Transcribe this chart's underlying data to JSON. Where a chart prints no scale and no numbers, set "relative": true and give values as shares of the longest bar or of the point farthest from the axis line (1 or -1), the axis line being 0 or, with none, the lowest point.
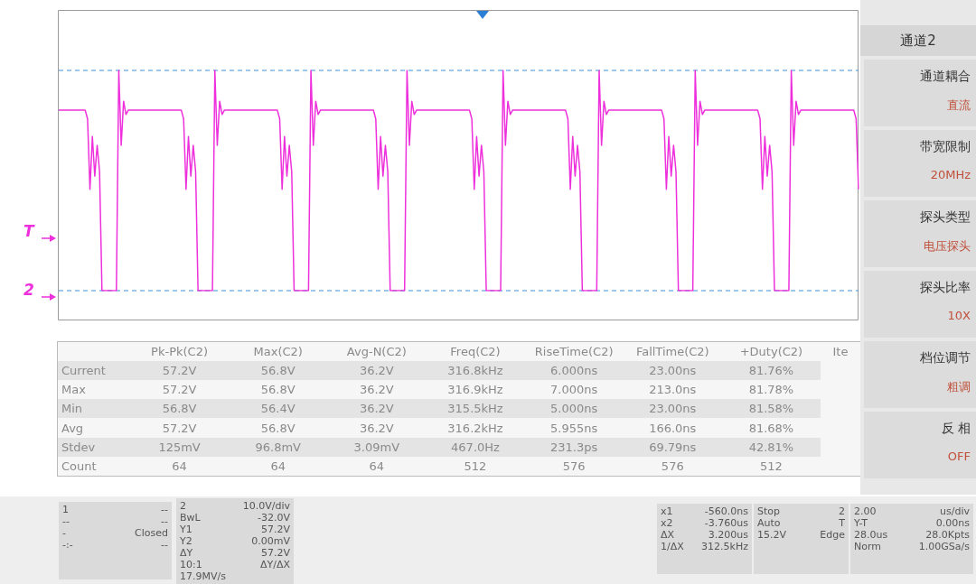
{
  "chart_data": [
    {
      "type": "line",
      "relative": true,
      "marker": "none",
      "categories": [
        null,
        null,
        null,
        null,
        null,
        null,
        null,
        null,
        null,
        null,
        null,
        null,
        null,
        null,
        null,
        null,
        null,
        null,
        null,
        null,
        null,
        null,
        null,
        null,
        null,
        null,
        null,
        null,
        null,
        null,
        null,
        null,
        null,
        null,
        null,
        null,
        null,
        null,
        null,
        null,
        null,
        null,
        null,
        null,
        null,
        null,
        null,
        null,
        null,
        null,
        null,
        null,
        null,
        null,
        null,
        null,
        null,
        null,
        null,
        null,
        null,
        null,
        null,
        null,
        null,
        null,
        null,
        null,
        null,
        null,
        null,
        null,
        null,
        null,
        null,
        null,
        null,
        null,
        null,
        null,
        null,
        null,
        null,
        null,
        null,
        null,
        null,
        null,
        null,
        null,
        null,
        null,
        null,
        null,
        null,
        null,
        null,
        null,
        null,
        null,
        null,
        null,
        null,
        null,
        null,
        null,
        null,
        null,
        null,
        null,
        null,
        null,
        null,
        null,
        null,
        null,
        null,
        null,
        null,
        null,
        null,
        null,
        null,
        null,
        null,
        null,
        null,
        null,
        null,
        null,
        null,
        null,
        null,
        null,
        null,
        null,
        null,
        null,
        null,
        null,
        null,
        null,
        null,
        null,
        null,
        null,
        null,
        null,
        null,
        null,
        null,
        null,
        null,
        null,
        null,
        null,
        null,
        null,
        null,
        null,
        null,
        null,
        null,
        null,
        null,
        null,
        null,
        null,
        null,
        null,
        null,
        null,
        null,
        null,
        null,
        null,
        null,
        null,
        null,
        null,
        null,
        null,
        null,
        null,
        null,
        null,
        null,
        null,
        null,
        null,
        null,
        null,
        null,
        null,
        null,
        null,
        null,
        null,
        null,
        null,
        null,
        null,
        null,
        null,
        null,
        null,
        null,
        null,
        null,
        null,
        null,
        null,
        null,
        null,
        null,
        null,
        null,
        null,
        null,
        null,
        null,
        null,
        null,
        null,
        null,
        null,
        null,
        null,
        null,
        null,
        null,
        null,
        null,
        null,
        null,
        null,
        null,
        null,
        null,
        null,
        null,
        null,
        null,
        null,
        null,
        null,
        null,
        null,
        null,
        null,
        null,
        null,
        null,
        null,
        null,
        null,
        null,
        null,
        null,
        null,
        null,
        null,
        null,
        null,
        null,
        null,
        null,
        null,
        null,
        null,
        null,
        null,
        null,
        null,
        null,
        null,
        null,
        null,
        null,
        null,
        null,
        null,
        null,
        null,
        null,
        null,
        null,
        null,
        null,
        null,
        null,
        null,
        null,
        null,
        null,
        null,
        null,
        null,
        null,
        null,
        null,
        null,
        null,
        null,
        null,
        null,
        null,
        null,
        null,
        null,
        null,
        null,
        null,
        null,
        null,
        null,
        null,
        null,
        null,
        null,
        null,
        null,
        null,
        null,
        null,
        null,
        null,
        null,
        null,
        null,
        null,
        null,
        null,
        null
      ],
      "series": [
        {
          "color": "#ee30dc",
          "values": [
            0.82,
            0.82,
            0.82,
            0.82,
            0.82,
            0.82,
            0.82,
            0.82,
            0.82,
            0.82,
            0.82,
            0.82,
            0.78,
            0.46,
            0.7,
            0.52,
            0.66,
            0.54,
            0,
            0,
            0,
            0,
            0,
            0,
            0,
            1,
            0.66,
            0.86,
            0.8,
            0.82,
            0.82,
            0.82,
            0.82,
            0.82,
            0.82,
            0.82,
            0.82,
            0.82,
            0.82,
            0.82,
            0.82,
            0.82,
            0.82,
            0.82,
            0.82,
            0.82,
            0.82,
            0.82,
            0.82,
            0.82,
            0.82,
            0.82,
            0.78,
            0.46,
            0.7,
            0.52,
            0.66,
            0.54,
            0,
            0,
            0,
            0,
            0,
            0,
            0,
            1,
            0.66,
            0.86,
            0.8,
            0.82,
            0.82,
            0.82,
            0.82,
            0.82,
            0.82,
            0.82,
            0.82,
            0.82,
            0.82,
            0.82,
            0.82,
            0.82,
            0.82,
            0.82,
            0.82,
            0.82,
            0.82,
            0.82,
            0.82,
            0.82,
            0.82,
            0.82,
            0.78,
            0.46,
            0.7,
            0.52,
            0.66,
            0.54,
            0,
            0,
            0,
            0,
            0,
            0,
            0,
            1,
            0.66,
            0.86,
            0.8,
            0.82,
            0.82,
            0.82,
            0.82,
            0.82,
            0.82,
            0.82,
            0.82,
            0.82,
            0.82,
            0.82,
            0.82,
            0.82,
            0.82,
            0.82,
            0.82,
            0.82,
            0.82,
            0.82,
            0.82,
            0.82,
            0.82,
            0.82,
            0.78,
            0.46,
            0.7,
            0.52,
            0.66,
            0.54,
            0,
            0,
            0,
            0,
            0,
            0,
            0,
            1,
            0.66,
            0.86,
            0.8,
            0.82,
            0.82,
            0.82,
            0.82,
            0.82,
            0.82,
            0.82,
            0.82,
            0.82,
            0.82,
            0.82,
            0.82,
            0.82,
            0.82,
            0.82,
            0.82,
            0.82,
            0.82,
            0.82,
            0.82,
            0.82,
            0.82,
            0.82,
            0.78,
            0.46,
            0.7,
            0.52,
            0.66,
            0.54,
            0,
            0,
            0,
            0,
            0,
            0,
            0,
            1,
            0.66,
            0.86,
            0.8,
            0.82,
            0.82,
            0.82,
            0.82,
            0.82,
            0.82,
            0.82,
            0.82,
            0.82,
            0.82,
            0.82,
            0.82,
            0.82,
            0.82,
            0.82,
            0.82,
            0.82,
            0.82,
            0.82,
            0.82,
            0.82,
            0.82,
            0.82,
            0.78,
            0.46,
            0.7,
            0.52,
            0.66,
            0.54,
            0,
            0,
            0,
            0,
            0,
            0,
            0,
            1,
            0.66,
            0.86,
            0.8,
            0.82,
            0.82,
            0.82,
            0.82,
            0.82,
            0.82,
            0.82,
            0.82,
            0.82,
            0.82,
            0.82,
            0.82,
            0.82,
            0.82,
            0.82,
            0.82,
            0.82,
            0.82,
            0.82,
            0.82,
            0.82,
            0.82,
            0.82,
            0.78,
            0.46,
            0.7,
            0.52,
            0.66,
            0.54,
            0,
            0,
            0,
            0,
            0,
            0,
            0,
            1,
            0.66,
            0.86,
            0.8,
            0.82,
            0.82,
            0.82,
            0.82,
            0.82,
            0.82,
            0.82,
            0.82,
            0.82,
            0.82,
            0.82,
            0.82,
            0.82,
            0.82,
            0.82,
            0.82,
            0.82,
            0.82,
            0.82,
            0.82,
            0.82,
            0.82,
            0.82,
            0.78,
            0.46,
            0.7,
            0.52,
            0.66,
            0.54,
            0,
            0,
            0,
            0,
            0,
            0,
            0,
            1,
            0.66,
            0.86,
            0.8,
            0.82,
            0.82,
            0.82,
            0.82,
            0.82,
            0.82,
            0.82,
            0.82,
            0.82,
            0.82,
            0.82,
            0.82,
            0.82,
            0.82,
            0.82,
            0.82,
            0.82,
            0.82,
            0.82,
            0.82,
            0.82,
            0.82,
            0.82,
            0.78,
            0.46
          ]
        }
      ],
      "ref_lines": [
        {
          "axis": "y",
          "value": 1,
          "color": "#3a8fd6",
          "line_style": "dashed"
        },
        {
          "axis": "y",
          "value": 0,
          "color": "#3a8fd6",
          "line_style": "dashed"
        }
      ],
      "annotations": [
        "T",
        "2"
      ]
    },
    {
      "type": "other",
      "annotations": [
        "Pk-Pk(C2)",
        "Max(C2)",
        "Avg-N(C2)",
        "Freq(C2)",
        "RiseTime(C2)",
        "FallTime(C2)",
        "+Duty(C2)",
        "Ite",
        "Current",
        "57.2V",
        "56.8V",
        "36.2V",
        "316.8kHz",
        "6.000ns",
        "23.00ns",
        "81.76%",
        "Max",
        "57.2V",
        "56.8V",
        "36.2V",
        "316.9kHz",
        "7.000ns",
        "213.0ns",
        "81.78%",
        "Min",
        "56.8V",
        "56.4V",
        "36.2V",
        "315.5kHz",
        "5.000ns",
        "23.00ns",
        "81.58%",
        "Avg",
        "57.2V",
        "56.8V",
        "36.2V",
        "316.2kHz",
        "5.955ns",
        "166.0ns",
        "81.68%",
        "Stdev",
        "125mV",
        "96.8mV",
        "3.09mV",
        "467.0Hz",
        "231.3ps",
        "69.79ns",
        "42.81%",
        "Count",
        "64",
        "64",
        "64",
        "512",
        "576",
        "576",
        "512"
      ]
    },
    {
      "type": "other",
      "title": "通道2",
      "annotations": [
        "通道耦合",
        "直流",
        "带宽限制",
        "20MHz",
        "探头类型",
        "电压探头",
        "探头比率",
        "10X",
        "档位调节",
        "粗调",
        "反 相",
        "OFF"
      ]
    },
    {
      "type": "other",
      "annotations": [
        "1",
        "--",
        "--",
        "--",
        "-",
        "Closed",
        "-:-",
        "--"
      ]
    },
    {
      "type": "other",
      "annotations": [
        "2",
        "10.0V/div",
        "BwL",
        "-32.0V",
        "Y1",
        "57.2V",
        "Y2",
        "0.00mV",
        "ΔY",
        "57.2V",
        "10:1",
        "ΔY/ΔX",
        "17.9MV/s"
      ]
    },
    {
      "type": "other",
      "annotations": [
        "x1",
        "-560.0ns",
        "x2",
        "-3.760us",
        "ΔX",
        "3.200us",
        "1/ΔX",
        "312.5kHz"
      ]
    },
    {
      "type": "other",
      "annotations": [
        "Stop",
        "2",
        "Auto",
        "T",
        "15.2V",
        "Edge"
      ]
    },
    {
      "type": "other",
      "annotations": [
        "2.00",
        "us/div",
        "Y-T",
        "0.00ns",
        "28.0us",
        "28.0Kpts",
        "Norm",
        "1.00GSa/s"
      ]
    }
  ]
}
